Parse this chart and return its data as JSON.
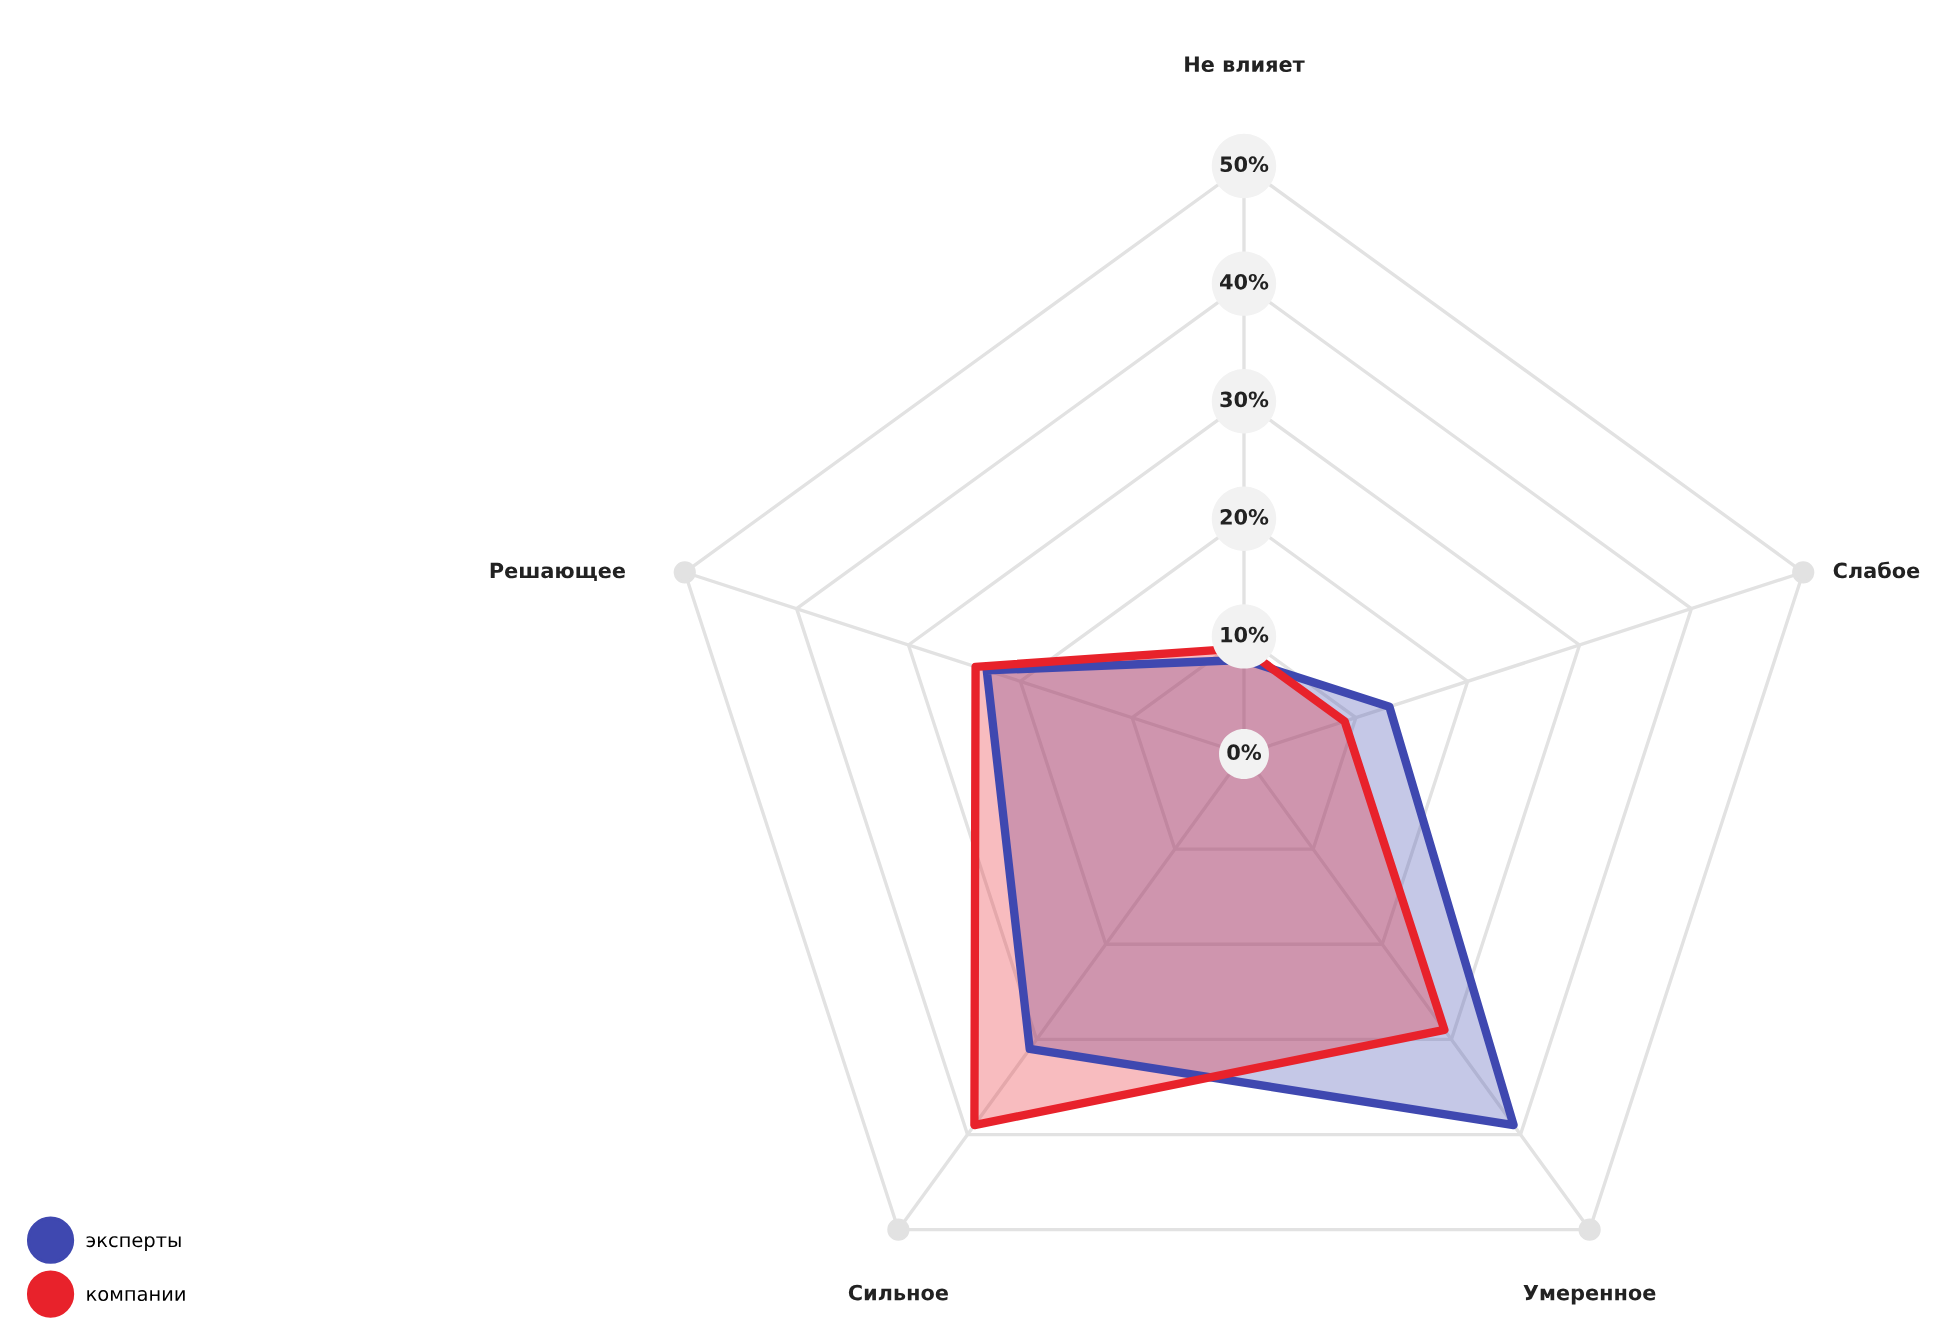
{
  "chart_data": {
    "type": "radar",
    "categories": [
      "Не влияет",
      "Слабое",
      "Умеренное",
      "Сильное",
      "Решающее"
    ],
    "series": [
      {
        "name": "эксперты",
        "color": "#3f48b0",
        "values": [
          8,
          13,
          39,
          31,
          23
        ]
      },
      {
        "name": "компании",
        "color": "#e8222b",
        "values": [
          9,
          9,
          29,
          39,
          24
        ]
      }
    ],
    "ylim": [
      0,
      50
    ],
    "yticks": [
      {
        "value": 0,
        "label": "0%"
      },
      {
        "value": 10,
        "label": "10%"
      },
      {
        "value": 20,
        "label": "20%"
      },
      {
        "value": 30,
        "label": "30%"
      },
      {
        "value": 40,
        "label": "40%"
      },
      {
        "value": 50,
        "label": "50%"
      }
    ],
    "grid": true,
    "legend": "bottom left"
  }
}
